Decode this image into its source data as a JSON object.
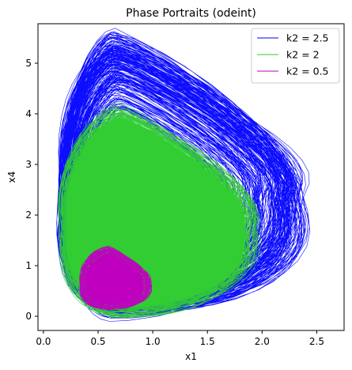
{
  "chart_data": {
    "type": "line",
    "title": "Phase Portraits (odeint)",
    "xlabel": "x1",
    "ylabel": "x4",
    "xlim": [
      -0.05,
      2.75
    ],
    "ylim": [
      -0.28,
      5.78
    ],
    "xticks": [
      0.0,
      0.5,
      1.0,
      1.5,
      2.0,
      2.5
    ],
    "xtick_labels": [
      "0.0",
      "0.5",
      "1.0",
      "1.5",
      "2.0",
      "2.5"
    ],
    "yticks": [
      0,
      1,
      2,
      3,
      4,
      5
    ],
    "ytick_labels": [
      "0",
      "1",
      "2",
      "3",
      "4",
      "5"
    ],
    "grid": false,
    "legend_position": "top-right",
    "series": [
      {
        "name": "k2 = 2.5",
        "color": "#0000ff",
        "x_range": [
          0.07,
          2.63
        ],
        "y_range": [
          0.03,
          5.5
        ],
        "peak_x": 0.65
      },
      {
        "name": "k2 = 2",
        "color": "#32cd32",
        "x_range": [
          0.08,
          2.12
        ],
        "y_range": [
          0.05,
          4.1
        ],
        "peak_x": 0.7
      },
      {
        "name": "k2 = 0.5",
        "color": "#bf00bf",
        "x_range": [
          0.3,
          1.03
        ],
        "y_range": [
          0.15,
          1.35
        ],
        "peak_x": 0.6
      }
    ]
  }
}
